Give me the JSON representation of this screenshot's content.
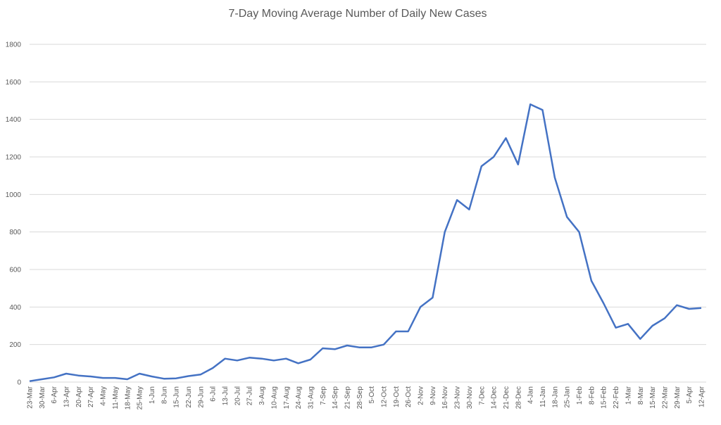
{
  "chart_data": {
    "type": "line",
    "title": "7-Day Moving Average Number of Daily New Cases",
    "categories": [
      "23-Mar",
      "30-Mar",
      "6-Apr",
      "13-Apr",
      "20-Apr",
      "27-Apr",
      "4-May",
      "11-May",
      "18-May",
      "25-May",
      "1-Jun",
      "8-Jun",
      "15-Jun",
      "22-Jun",
      "29-Jun",
      "6-Jul",
      "13-Jul",
      "20-Jul",
      "27-Jul",
      "3-Aug",
      "10-Aug",
      "17-Aug",
      "24-Aug",
      "31-Aug",
      "7-Sep",
      "14-Sep",
      "21-Sep",
      "28-Sep",
      "5-Oct",
      "12-Oct",
      "19-Oct",
      "26-Oct",
      "2-Nov",
      "9-Nov",
      "16-Nov",
      "23-Nov",
      "30-Nov",
      "7-Dec",
      "14-Dec",
      "21-Dec",
      "28-Dec",
      "4-Jan",
      "11-Jan",
      "18-Jan",
      "25-Jan",
      "1-Feb",
      "8-Feb",
      "15-Feb",
      "22-Feb",
      "1-Mar",
      "8-Mar",
      "15-Mar",
      "22-Mar",
      "29-Mar",
      "5-Apr",
      "12-Apr"
    ],
    "series": [
      {
        "name": "7-Day Moving Average",
        "color": "#4472c4",
        "values": [
          5,
          15,
          25,
          45,
          35,
          30,
          22,
          22,
          15,
          45,
          30,
          18,
          20,
          32,
          40,
          75,
          125,
          115,
          130,
          125,
          115,
          125,
          100,
          120,
          180,
          175,
          195,
          185,
          185,
          200,
          270,
          270,
          400,
          450,
          800,
          970,
          920,
          1150,
          1200,
          1300,
          1160,
          1480,
          1450,
          1090,
          880,
          800,
          540,
          420,
          290,
          310,
          230,
          300,
          340,
          410,
          390,
          395
        ]
      }
    ],
    "ylim": [
      0,
      1800
    ],
    "yticks": [
      0,
      200,
      400,
      600,
      800,
      1000,
      1200,
      1400,
      1600,
      1800
    ],
    "grid": true
  }
}
